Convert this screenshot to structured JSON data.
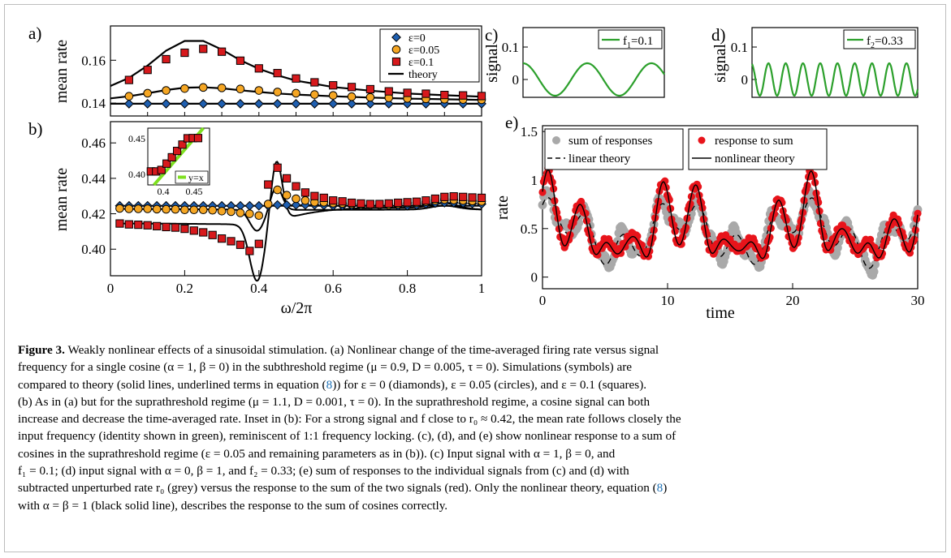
{
  "panels": {
    "a": {
      "label": "a)",
      "ylabel": "mean rate",
      "ylim": [
        0.134,
        0.176
      ],
      "yticks": [
        "0.14",
        "0.16"
      ],
      "ytick_values": [
        0.14,
        0.16
      ],
      "legend": [
        {
          "label": "ε=0",
          "marker": "diamond",
          "color": "#1f5fb0"
        },
        {
          "label": "ε=0.05",
          "marker": "circle",
          "color": "#f5a623"
        },
        {
          "label": "ε=0.1",
          "marker": "square",
          "color": "#d7191c"
        },
        {
          "label": "theory",
          "marker": "line",
          "color": "#000000"
        }
      ]
    },
    "b": {
      "label": "b)",
      "ylabel": "mean rate",
      "xlabel": "ω/2π",
      "ylim": [
        0.385,
        0.472
      ],
      "xlim": [
        0,
        1
      ],
      "yticks": [
        "0.40",
        "0.42",
        "0.44",
        "0.46"
      ],
      "ytick_values": [
        0.4,
        0.42,
        0.44,
        0.46
      ],
      "xticks": [
        "0",
        "0.2",
        "0.4",
        "0.6",
        "0.8",
        "1"
      ],
      "xtick_values": [
        0,
        0.2,
        0.4,
        0.6,
        0.8,
        1
      ],
      "inset": {
        "xticks": [
          "0.4",
          "0.45"
        ],
        "yticks": [
          "0.40",
          "0.45"
        ],
        "legend": "y=x",
        "legend_color": "#7ee020"
      }
    },
    "c": {
      "label": "c)",
      "ylabel": "signal",
      "yticks": [
        "0",
        "0.1"
      ],
      "legend": "f",
      "legend_sub": "1",
      "legend_value": "=0.1",
      "color": "#2ca02c"
    },
    "d": {
      "label": "d)",
      "ylabel": "signal",
      "yticks": [
        "0",
        "0.1"
      ],
      "legend": "f",
      "legend_sub": "2",
      "legend_value": "=0.33",
      "color": "#2ca02c"
    },
    "e": {
      "label": "e)",
      "ylabel": "rate",
      "xlabel": "time",
      "ylim": [
        -0.12,
        1.56
      ],
      "xlim": [
        0,
        30
      ],
      "yticks": [
        "0",
        "0.5",
        "1",
        "1.5"
      ],
      "ytick_values": [
        0,
        0.5,
        1,
        1.5
      ],
      "xticks": [
        "0",
        "10",
        "20",
        "30"
      ],
      "xtick_values": [
        0,
        10,
        20,
        30
      ],
      "legend1": [
        "sum of responses",
        "linear theory"
      ],
      "legend2": [
        "response to sum",
        "nonlinear theory"
      ],
      "colors": {
        "grey": "#a9a9a9",
        "red": "#e8141b"
      }
    }
  },
  "chart_data": [
    {
      "panel": "a",
      "type": "scatter",
      "ylabel": "mean rate",
      "ylim": [
        0.134,
        0.176
      ],
      "x": [
        0.05,
        0.1,
        0.15,
        0.2,
        0.25,
        0.3,
        0.35,
        0.4,
        0.45,
        0.5,
        0.55,
        0.6,
        0.65,
        0.7,
        0.75,
        0.8,
        0.85,
        0.9,
        0.95,
        1.0
      ],
      "series": [
        {
          "name": "ε=0",
          "values": [
            0.1397,
            0.1397,
            0.1397,
            0.1397,
            0.1397,
            0.1397,
            0.1397,
            0.1397,
            0.1397,
            0.1397,
            0.1397,
            0.1397,
            0.1397,
            0.1397,
            0.1397,
            0.1397,
            0.1397,
            0.1397,
            0.1397,
            0.1397
          ]
        },
        {
          "name": "ε=0.05",
          "values": [
            0.1432,
            0.1446,
            0.1459,
            0.1468,
            0.1473,
            0.1471,
            0.1466,
            0.1459,
            0.1452,
            0.1446,
            0.144,
            0.1436,
            0.143,
            0.1427,
            0.1425,
            0.1422,
            0.142,
            0.1418,
            0.1417,
            0.1416
          ]
        },
        {
          "name": "ε=0.1",
          "values": [
            0.1508,
            0.1555,
            0.1605,
            0.1635,
            0.1653,
            0.164,
            0.1598,
            0.1562,
            0.154,
            0.1515,
            0.1497,
            0.1483,
            0.1475,
            0.1465,
            0.1455,
            0.1448,
            0.1444,
            0.1438,
            0.1436,
            0.1433
          ]
        }
      ],
      "theory": {
        "x": [
          0.0,
          0.05,
          0.1,
          0.15,
          0.2,
          0.25,
          0.3,
          0.35,
          0.4,
          0.45,
          0.5,
          0.6,
          0.7,
          0.8,
          0.9,
          1.0
        ],
        "values_eps0": [
          0.1397,
          0.1397,
          0.1397,
          0.1397,
          0.1397,
          0.1397,
          0.1397,
          0.1397,
          0.1397,
          0.1397,
          0.1397,
          0.1397,
          0.1397,
          0.1397,
          0.1397,
          0.1397
        ],
        "values_eps005": [
          0.1422,
          0.1432,
          0.1446,
          0.1461,
          0.1472,
          0.1474,
          0.1469,
          0.146,
          0.1452,
          0.1445,
          0.144,
          0.1432,
          0.1426,
          0.1421,
          0.1418,
          0.1415
        ],
        "values_eps01": [
          0.148,
          0.1518,
          0.1575,
          0.1645,
          0.169,
          0.169,
          0.165,
          0.16,
          0.156,
          0.153,
          0.1505,
          0.1475,
          0.1458,
          0.1445,
          0.1437,
          0.143
        ]
      }
    },
    {
      "panel": "b",
      "type": "scatter",
      "xlabel": "ω/2π",
      "ylabel": "mean rate",
      "xlim": [
        0,
        1
      ],
      "ylim": [
        0.385,
        0.472
      ],
      "x": [
        0.025,
        0.05,
        0.075,
        0.1,
        0.125,
        0.15,
        0.175,
        0.2,
        0.225,
        0.25,
        0.275,
        0.3,
        0.325,
        0.35,
        0.375,
        0.4,
        0.425,
        0.45,
        0.475,
        0.5,
        0.525,
        0.55,
        0.575,
        0.6,
        0.625,
        0.65,
        0.675,
        0.7,
        0.725,
        0.75,
        0.775,
        0.8,
        0.825,
        0.85,
        0.875,
        0.9,
        0.925,
        0.95,
        0.975,
        1.0
      ],
      "series": [
        {
          "name": "ε=0",
          "values": [
            0.4245,
            0.4245,
            0.4245,
            0.4245,
            0.4245,
            0.4245,
            0.4245,
            0.4245,
            0.4245,
            0.4245,
            0.4245,
            0.4245,
            0.4245,
            0.4245,
            0.4245,
            0.4245,
            0.4245,
            0.425,
            0.425,
            0.425,
            0.425,
            0.425,
            0.4248,
            0.4245,
            0.4245,
            0.4245,
            0.4245,
            0.4245,
            0.4245,
            0.4245,
            0.4245,
            0.4245,
            0.4248,
            0.4255,
            0.426,
            0.4262,
            0.4262,
            0.426,
            0.4258,
            0.4255
          ]
        },
        {
          "name": "ε=0.05",
          "values": [
            0.423,
            0.4228,
            0.4228,
            0.4228,
            0.4226,
            0.4225,
            0.4225,
            0.4222,
            0.4222,
            0.4222,
            0.422,
            0.4215,
            0.4212,
            0.4205,
            0.42,
            0.419,
            0.4255,
            0.4335,
            0.4305,
            0.4285,
            0.4275,
            0.4265,
            0.4265,
            0.426,
            0.4258,
            0.4255,
            0.4252,
            0.425,
            0.425,
            0.425,
            0.4255,
            0.426,
            0.4262,
            0.4268,
            0.4275,
            0.428,
            0.4278,
            0.4275,
            0.4272,
            0.427
          ]
        },
        {
          "name": "ε=0.1",
          "values": [
            0.4145,
            0.414,
            0.4138,
            0.4135,
            0.413,
            0.4125,
            0.4122,
            0.4115,
            0.4105,
            0.4095,
            0.408,
            0.406,
            0.4045,
            0.4025,
            0.399,
            0.403,
            0.4365,
            0.446,
            0.44,
            0.4355,
            0.432,
            0.43,
            0.429,
            0.4275,
            0.427,
            0.4262,
            0.4258,
            0.4255,
            0.4255,
            0.4258,
            0.4262,
            0.4265,
            0.4268,
            0.4275,
            0.4285,
            0.4295,
            0.4298,
            0.4295,
            0.4292,
            0.429
          ]
        }
      ]
    },
    {
      "panel": "e",
      "type": "line",
      "xlabel": "time",
      "ylabel": "rate",
      "xlim": [
        0,
        30
      ],
      "ylim": [
        -0.12,
        1.56
      ],
      "series": [
        {
          "name": "sum of responses"
        },
        {
          "name": "linear theory"
        },
        {
          "name": "response to sum"
        },
        {
          "name": "nonlinear theory"
        }
      ]
    }
  ],
  "caption": {
    "fig_label": "Figure 3.",
    "text1": " Weakly nonlinear effects of a sinusoidal stimulation. (a) Nonlinear change of the time-averaged firing rate versus signal",
    "text2": "frequency for a single cosine (α = 1, β = 0) in the subthreshold regime (μ = 0.9, D = 0.005, τ = 0). Simulations (symbols) are",
    "text3a": "compared to theory (solid lines, underlined terms in equation (",
    "ref1": "8",
    "text3b": ")) for ε = 0 (diamonds), ε = 0.05 (circles), and ε = 0.1 (squares).",
    "text4": "(b) As in (a) but for the suprathreshold regime (μ = 1.1, D = 0.001, τ = 0). In the suprathreshold regime, a cosine signal can both",
    "text5": "increase and decrease the time-averaged rate. Inset in (b): For a strong signal and f close to r₀ ≈ 0.42, the mean rate follows closely the",
    "text6": "input frequency (identity shown in green), reminiscent of 1:1 frequency locking. (c), (d), and (e) show nonlinear response to a sum of",
    "text7": "cosines in the suprathreshold regime (ε = 0.05 and remaining parameters as in (b)). (c) Input signal with α = 1, β = 0, and",
    "text8": "f₁ = 0.1; (d) input signal with α = 0, β = 1, and f₂ = 0.33; (e) sum of responses to the individual signals from (c) and (d) with",
    "text9": "subtracted unperturbed rate r₀ (grey) versus the response to the sum of the two signals (red). Only the nonlinear theory, equation (",
    "ref2": "8",
    "text9b": ")",
    "text10": "with α = β = 1 (black solid line), describes the response to the sum of cosines correctly."
  }
}
